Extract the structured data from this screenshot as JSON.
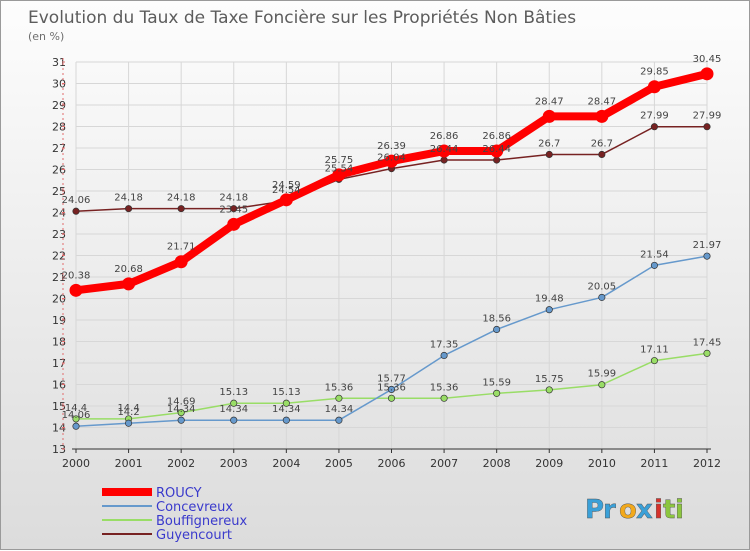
{
  "chart_data": {
    "type": "line",
    "title": "Evolution du Taux de Taxe Foncière sur les Propriétés Non Bâties",
    "subtitle": "(en %)",
    "x": [
      "2000",
      "2001",
      "2002",
      "2003",
      "2004",
      "2005",
      "2006",
      "2007",
      "2008",
      "2009",
      "2010",
      "2011",
      "2012"
    ],
    "ylim": [
      13,
      31
    ],
    "yticks": [
      "13",
      "14",
      "15",
      "16",
      "17",
      "18",
      "19",
      "20",
      "21",
      "22",
      "23",
      "24",
      "25",
      "26",
      "27",
      "28",
      "29",
      "30",
      "31"
    ],
    "grid": true,
    "series": [
      {
        "name": "ROUCY",
        "color": "#ff0000",
        "values": [
          20.38,
          20.68,
          21.71,
          23.45,
          24.59,
          25.75,
          26.39,
          26.86,
          26.86,
          28.47,
          28.47,
          29.85,
          30.45
        ],
        "labels": [
          "20.38",
          "20.68",
          "21.71",
          "23.45",
          "24.59",
          "25.75",
          "26.39",
          "26.86",
          "26.86",
          "28.47",
          "28.47",
          "29.85",
          "30.45"
        ]
      },
      {
        "name": "Concevreux",
        "color": "#6699cc",
        "values": [
          14.06,
          14.2,
          14.34,
          14.34,
          14.34,
          14.34,
          15.77,
          17.35,
          18.56,
          19.48,
          20.05,
          21.54,
          21.97
        ],
        "labels": [
          "14.06",
          "14.2",
          "14.34",
          "14.34",
          "14.34",
          "14.34",
          "15.77",
          "17.35",
          "18.56",
          "19.48",
          "20.05",
          "21.54",
          "21.97"
        ]
      },
      {
        "name": "Bouffignereux",
        "color": "#99dd66",
        "values": [
          14.4,
          14.4,
          14.69,
          15.13,
          15.13,
          15.36,
          15.36,
          15.36,
          15.59,
          15.75,
          15.99,
          17.11,
          17.45
        ],
        "labels": [
          "14.4",
          "14.4",
          "14.69",
          "15.13",
          "15.13",
          "15.36",
          "15.36",
          "15.36",
          "15.59",
          "15.75",
          "15.99",
          "17.11",
          "17.45"
        ]
      },
      {
        "name": "Guyencourt",
        "color": "#772222",
        "values": [
          24.06,
          24.18,
          24.18,
          24.18,
          24.54,
          25.54,
          26.04,
          26.44,
          26.44,
          26.7,
          26.7,
          27.99,
          27.99
        ],
        "labels": [
          "24.06",
          "24.18",
          "24.18",
          "24.18",
          "24.54",
          "25.54",
          "26.04",
          "26.44",
          "26.44",
          "26.7",
          "26.7",
          "27.99",
          "27.99"
        ]
      }
    ],
    "legend_position": "bottom-left"
  },
  "logo": {
    "letters": [
      "P",
      "r",
      "o",
      "x",
      "i",
      "t",
      "i"
    ],
    "colors": [
      "#3aa0d8",
      "#3aa0d8",
      "#f2a91c",
      "#3aa0d8",
      "#d6322b",
      "#8cc63f",
      "#8cc63f"
    ]
  }
}
